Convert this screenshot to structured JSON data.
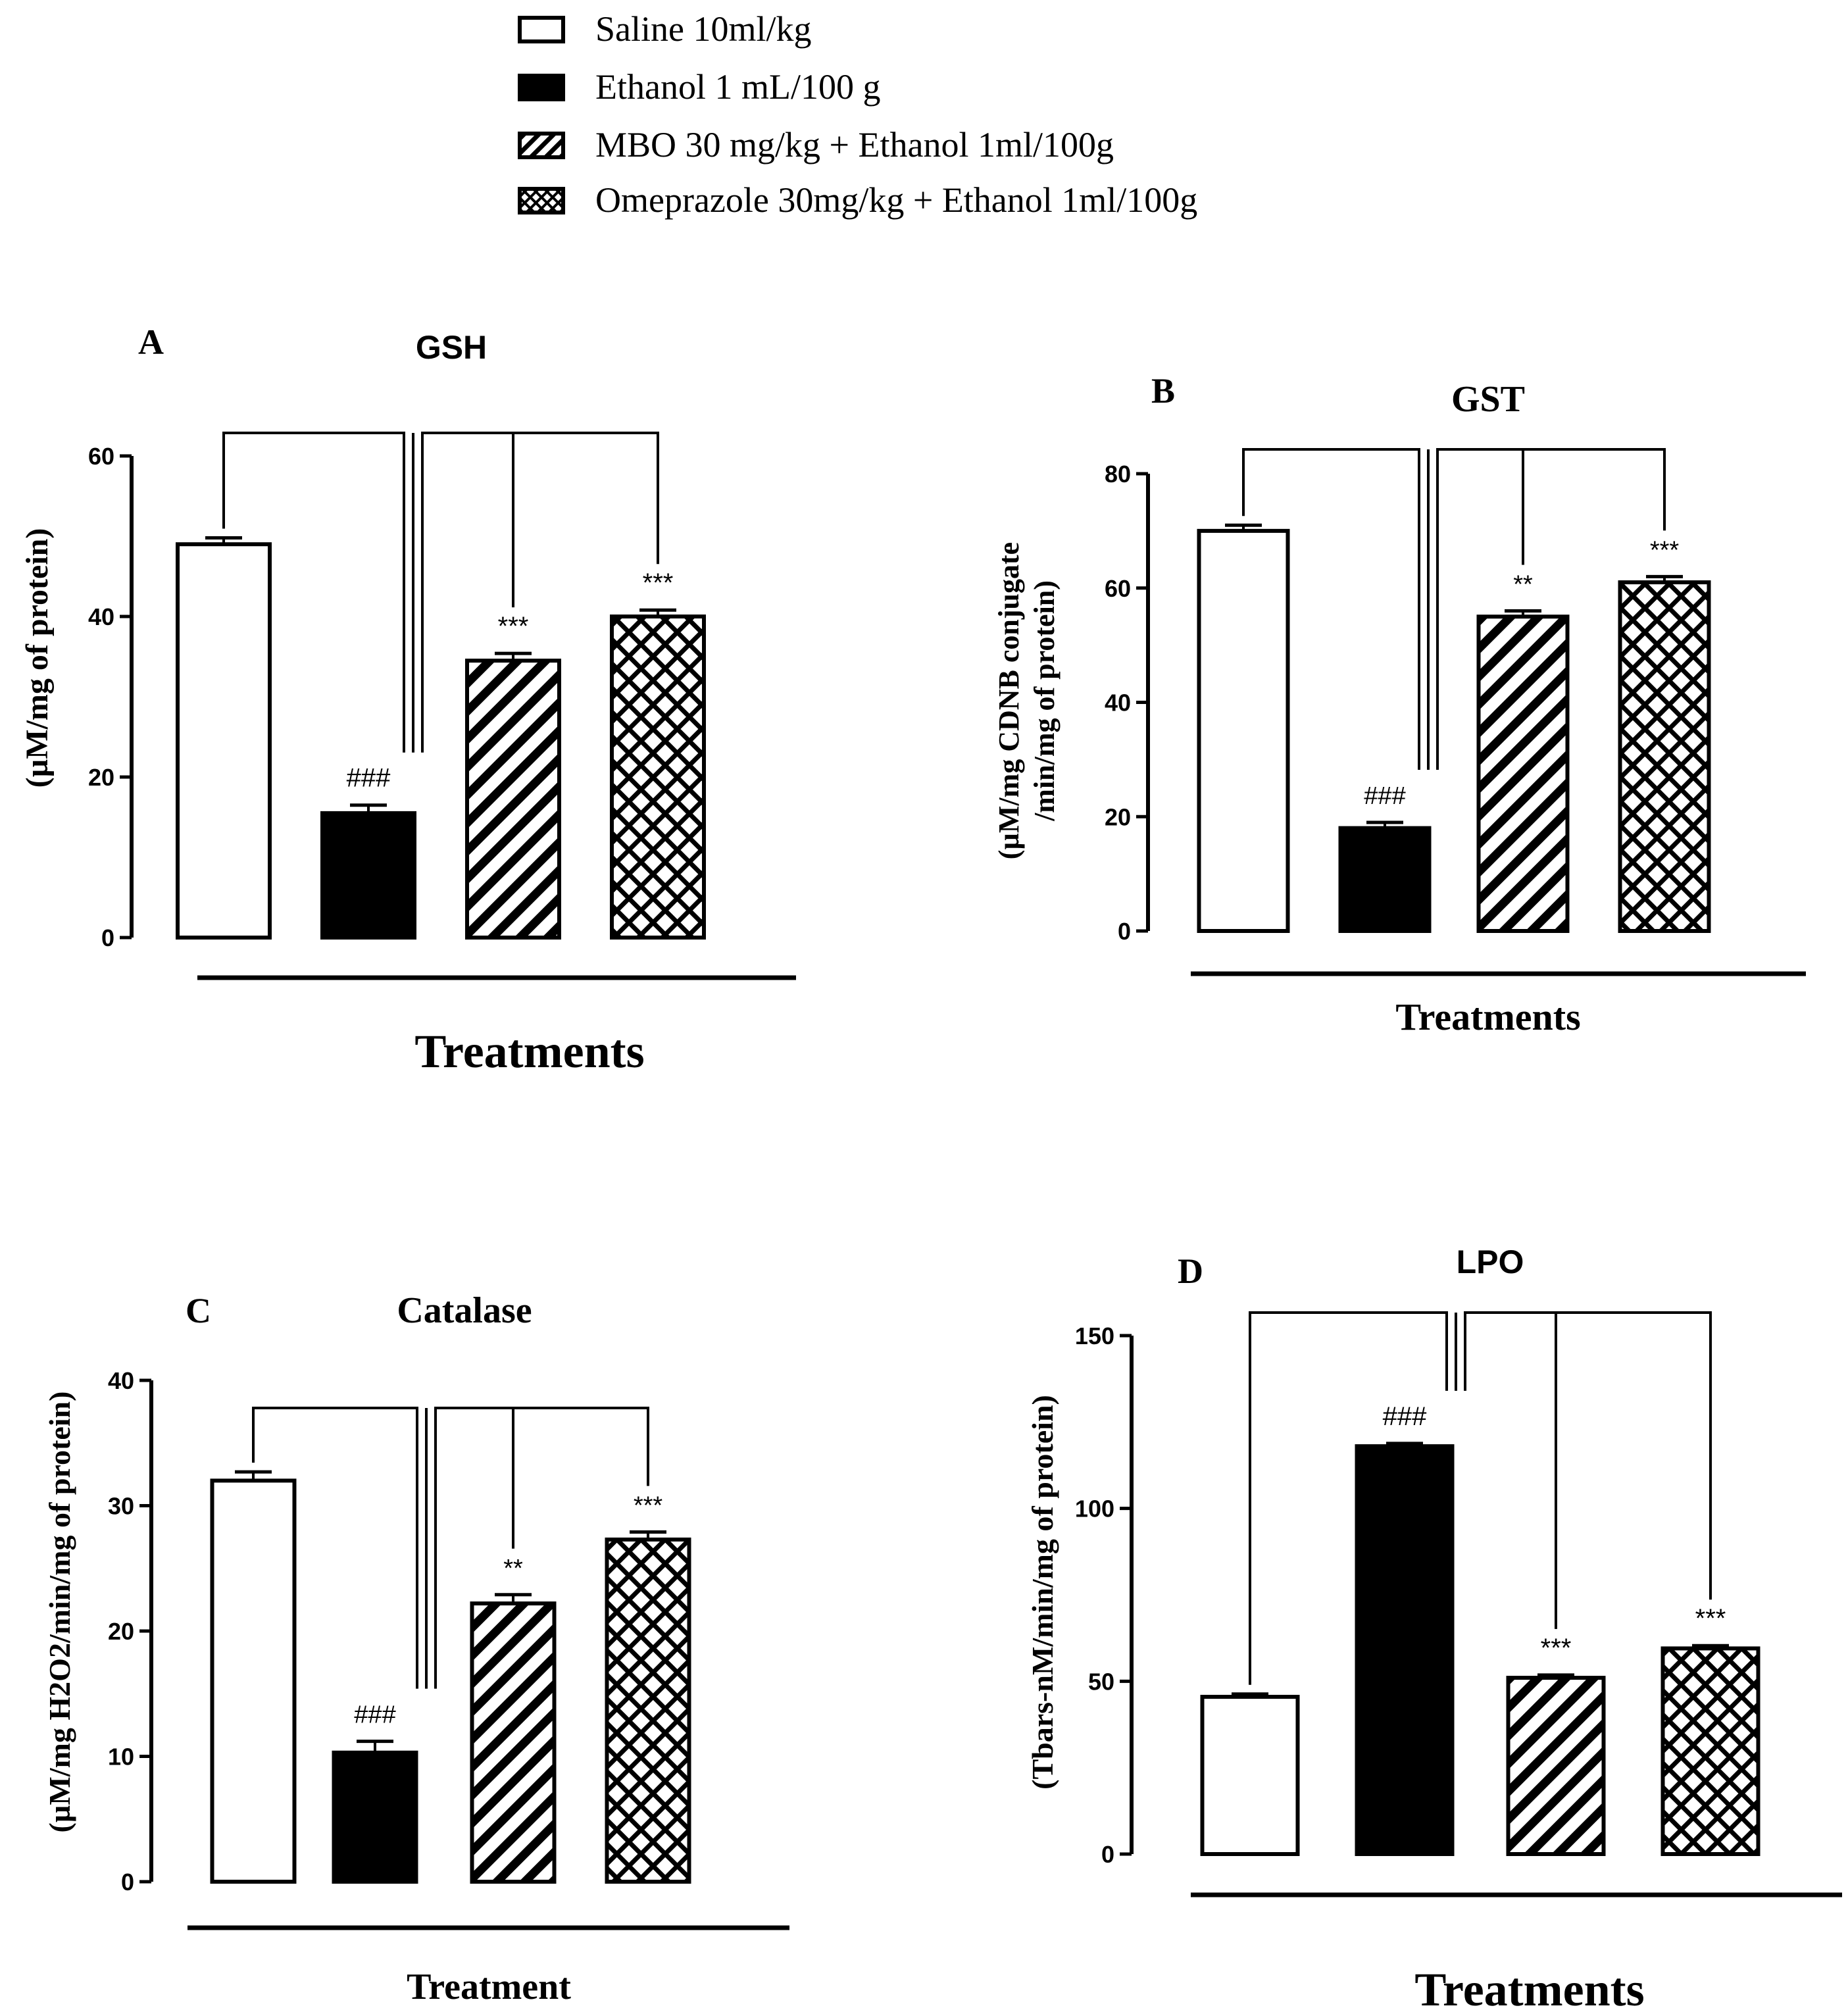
{
  "legend": [
    {
      "label": "Saline 10ml/kg",
      "style": "open"
    },
    {
      "label": "Ethanol 1 mL/100 g",
      "style": "solid"
    },
    {
      "label": "MBO 30 mg/kg + Ethanol 1ml/100g",
      "style": "diagonal"
    },
    {
      "label": "Omeprazole 30mg/kg + Ethanol 1ml/100g",
      "style": "crosshatch"
    }
  ],
  "colors": {
    "ink": "#000000",
    "paper": "#ffffff"
  },
  "chart_data": [
    {
      "type": "bar",
      "panel": "A",
      "title": "GSH",
      "ylabel": "(µM/mg  of protein)",
      "xlabel": "Treatments",
      "ylim": [
        0,
        60
      ],
      "yticks": [
        0,
        20,
        40,
        60
      ],
      "categories": [
        "Saline 10ml/kg",
        "Ethanol 1 mL/100 g",
        "MBO 30 mg/kg + Ethanol 1ml/100g",
        "Omeprazole 30mg/kg + Ethanol 1ml/100g"
      ],
      "values": [
        49,
        15.5,
        34.5,
        40
      ],
      "errors": [
        0.8,
        1.0,
        0.9,
        0.8
      ],
      "annotations": [
        "",
        "###",
        "***",
        "***"
      ]
    },
    {
      "type": "bar",
      "panel": "B",
      "title": "GST",
      "ylabel": "(µM/mg CDNB conjugate /min/mg of protein)",
      "ylabel_lines": [
        "(µM/mg CDNB conjugate",
        "/min/mg of protein)"
      ],
      "xlabel": "Treatments",
      "ylim": [
        0,
        80
      ],
      "yticks": [
        0,
        20,
        40,
        60,
        80
      ],
      "categories": [
        "Saline 10ml/kg",
        "Ethanol 1 mL/100 g",
        "MBO 30 mg/kg + Ethanol 1ml/100g",
        "Omeprazole 30mg/kg + Ethanol 1ml/100g"
      ],
      "values": [
        70,
        18,
        55,
        61
      ],
      "errors": [
        1.0,
        1.0,
        1.0,
        1.0
      ],
      "annotations": [
        "",
        "###",
        "**",
        "***"
      ]
    },
    {
      "type": "bar",
      "panel": "C",
      "title": "Catalase",
      "ylabel": "(µM/mg H2O2/min/mg of protein)",
      "xlabel": "Treatment",
      "ylim": [
        0,
        40
      ],
      "yticks": [
        0,
        10,
        20,
        30,
        40
      ],
      "categories": [
        "Saline 10ml/kg",
        "Ethanol 1 mL/100 g",
        "MBO 30 mg/kg + Ethanol 1ml/100g",
        "Omeprazole 30mg/kg + Ethanol 1ml/100g"
      ],
      "values": [
        32,
        10.3,
        22.2,
        27.3
      ],
      "errors": [
        0.7,
        0.9,
        0.7,
        0.6
      ],
      "annotations": [
        "",
        "###",
        "**",
        "***"
      ]
    },
    {
      "type": "bar",
      "panel": "D",
      "title": "LPO",
      "ylabel": "(Tbars-nM/min/mg  of protein)",
      "xlabel": "Treatments",
      "ylim": [
        0,
        150
      ],
      "yticks": [
        0,
        50,
        100,
        150
      ],
      "categories": [
        "Saline 10ml/kg",
        "Ethanol 1 mL/100 g",
        "MBO 30 mg/kg + Ethanol 1ml/100g",
        "Omeprazole 30mg/kg + Ethanol 1ml/100g"
      ],
      "values": [
        45.5,
        118,
        51,
        59.5
      ],
      "errors": [
        0.8,
        0.8,
        0.8,
        0.8
      ],
      "annotations": [
        "",
        "###",
        "***",
        "***"
      ]
    }
  ]
}
